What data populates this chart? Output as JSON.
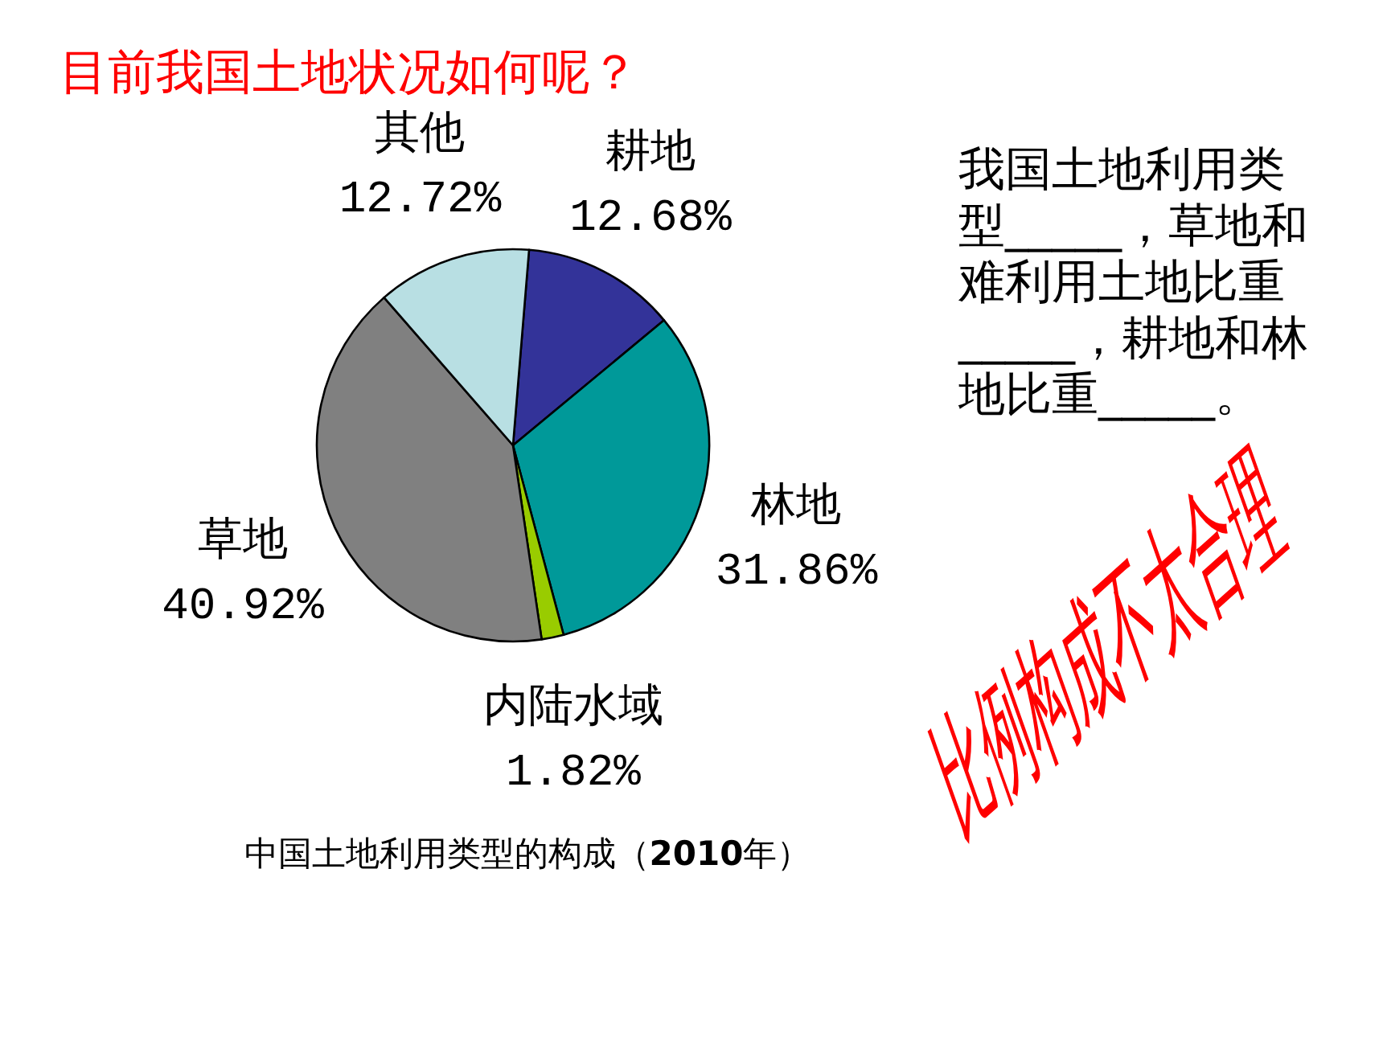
{
  "chart_data": {
    "type": "pie",
    "title": "目前我国土地状况如何呢？",
    "categories": [
      "耕地",
      "林地",
      "内陆水域",
      "草地",
      "其他"
    ],
    "values": [
      12.68,
      31.86,
      1.82,
      40.92,
      12.72
    ],
    "colors": [
      "#333399",
      "#009999",
      "#99cc00",
      "#808080",
      "#b8dfe3"
    ],
    "value_labels": [
      "12.68%",
      "31.86%",
      "1.82%",
      "40.92%",
      "12.72%"
    ],
    "annotations": [
      "中国土地利用类型的构成（2010年）",
      "我国土地利用类型_____，草地和难利用土地比重_____，耕地和林地比重_____。",
      "比例构成不太合理"
    ]
  }
}
